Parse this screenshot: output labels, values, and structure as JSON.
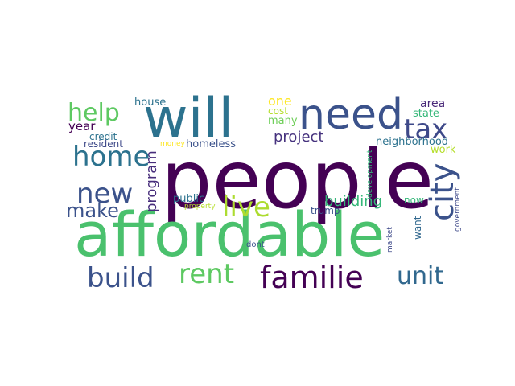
{
  "words": [
    {
      "text": "people",
      "color": "#440154"
    },
    {
      "text": "affordable",
      "color": "#4ac16d"
    },
    {
      "text": "will",
      "color": "#2c728e"
    },
    {
      "text": "need",
      "color": "#3b528b"
    },
    {
      "text": "familie",
      "color": "#440154"
    },
    {
      "text": "rent",
      "color": "#5ec962"
    },
    {
      "text": "build",
      "color": "#3b528b"
    },
    {
      "text": "tax",
      "color": "#3e4989"
    },
    {
      "text": "city",
      "color": "#3b528b"
    },
    {
      "text": "home",
      "color": "#2c728e"
    },
    {
      "text": "help",
      "color": "#5ec962"
    },
    {
      "text": "new",
      "color": "#3b528b"
    },
    {
      "text": "live",
      "color": "#addc30"
    },
    {
      "text": "unit",
      "color": "#31688e"
    },
    {
      "text": "make",
      "color": "#3b528b"
    },
    {
      "text": "project",
      "color": "#46327e"
    },
    {
      "text": "building",
      "color": "#35b779"
    },
    {
      "text": "program",
      "color": "#472d7b"
    },
    {
      "text": "homeless",
      "color": "#3b528b"
    },
    {
      "text": "year",
      "color": "#440154"
    },
    {
      "text": "neighborhood",
      "color": "#2c728e"
    },
    {
      "text": "one",
      "color": "#fde725"
    },
    {
      "text": "cost",
      "color": "#b5de2b"
    },
    {
      "text": "many",
      "color": "#6ece58"
    },
    {
      "text": "area",
      "color": "#482878"
    },
    {
      "text": "state",
      "color": "#35b779"
    },
    {
      "text": "work",
      "color": "#b5de2b"
    },
    {
      "text": "house",
      "color": "#2c728e"
    },
    {
      "text": "credit",
      "color": "#2c728e"
    },
    {
      "text": "resident",
      "color": "#3e4989"
    },
    {
      "text": "public",
      "color": "#2c728e"
    },
    {
      "text": "trump",
      "color": "#3b528b"
    },
    {
      "text": "now",
      "color": "#35b779"
    },
    {
      "text": "want",
      "color": "#31688e"
    },
    {
      "text": "development",
      "color": "#35b779"
    },
    {
      "text": "money",
      "color": "#fde725"
    },
    {
      "text": "property",
      "color": "#b5de2b"
    },
    {
      "text": "market",
      "color": "#3e4989"
    },
    {
      "text": "dont",
      "color": "#3b528b"
    },
    {
      "text": "government",
      "color": "#3e4989"
    }
  ]
}
